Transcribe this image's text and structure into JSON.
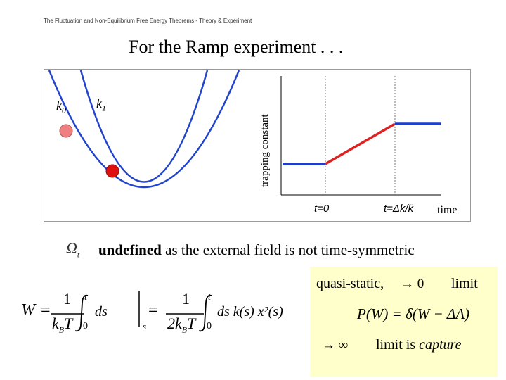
{
  "slide": {
    "header": "The Fluctuation and Non-Equilibrium Free Energy Theorems - Theory & Experiment",
    "title": "For the Ramp experiment . . ."
  },
  "potential_diagram": {
    "k0_label": "k",
    "k0_sub": "0",
    "k1_label": "k",
    "k1_sub": "1",
    "bead_k0_color": "#f08080",
    "bead_k1_color": "#e01010",
    "curve_color": "#2244cc"
  },
  "ramp_plot": {
    "ylabel": "trapping constant",
    "tick_t0": "t=0",
    "tick_t1": "t=Δk/k̇",
    "xlabel": "time",
    "low_color": "#1a3fd0",
    "ramp_color": "#e02020"
  },
  "text": {
    "omega_symbol": "Ω",
    "omega_sub": "t",
    "undefined_bold": "undefined",
    "undefined_rest": " as the external field is not time-symmetric"
  },
  "note": {
    "line1_prefix": "quasi-static,",
    "line1_suffix": "limit",
    "line2_eq": "P(W) = δ(W − ΔA)",
    "line3_suffix": "limit is",
    "line3_italic": "capture",
    "background": "#ffffcc"
  },
  "work_equation": {
    "lhs": "W",
    "eq": "=",
    "num1": "1",
    "den1": "k",
    "den1_sub": "B",
    "den1_T": "T",
    "int_upper": "t",
    "int_lower": "0",
    "integrand1": "ds",
    "num2": "1",
    "den2": "2k",
    "den2_sub": "B",
    "den2_T": "T",
    "integrand2": "ds k(s) x²(s)",
    "eval_sub": "s"
  }
}
